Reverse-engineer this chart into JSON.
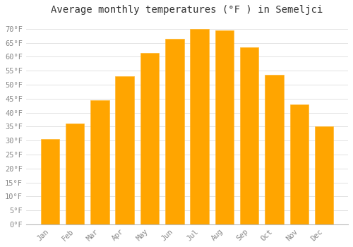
{
  "title": "Average monthly temperatures (°F ) in Semeljci",
  "months": [
    "Jan",
    "Feb",
    "Mar",
    "Apr",
    "May",
    "Jun",
    "Jul",
    "Aug",
    "Sep",
    "Oct",
    "Nov",
    "Dec"
  ],
  "values": [
    30.5,
    36.0,
    44.5,
    53.0,
    61.5,
    66.5,
    70.0,
    69.5,
    63.5,
    53.5,
    43.0,
    35.0
  ],
  "bar_color": "#FFA500",
  "bar_edge_color": "#FFB833",
  "background_color": "#FFFFFF",
  "grid_color": "#DDDDDD",
  "tick_text_color": "#888888",
  "title_color": "#333333",
  "ylim": [
    0,
    73
  ],
  "yticks": [
    0,
    5,
    10,
    15,
    20,
    25,
    30,
    35,
    40,
    45,
    50,
    55,
    60,
    65,
    70
  ],
  "title_fontsize": 10,
  "tick_fontsize": 7.5,
  "bar_width": 0.75
}
